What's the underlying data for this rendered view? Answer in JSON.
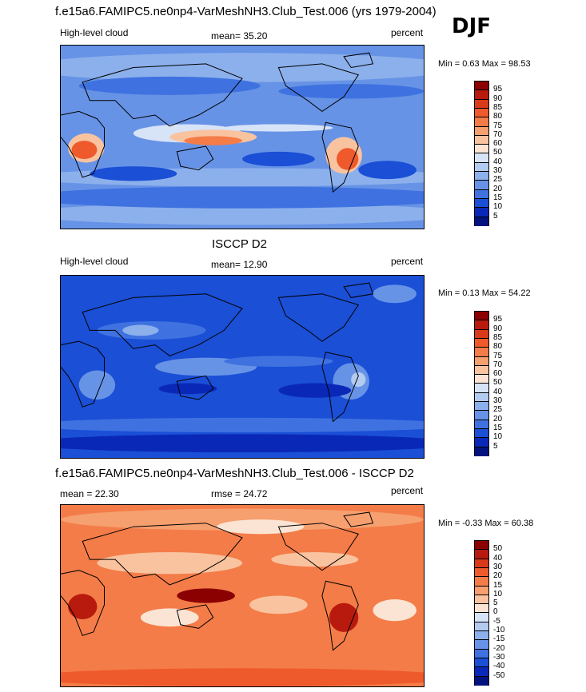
{
  "header": {
    "title": "f.e15a6.FAMIPC5.ne0np4-VarMeshNH3.Club_Test.006 (yrs 1979-2004)",
    "season": "DJF"
  },
  "panels": [
    {
      "id": "model",
      "variable": "High-level cloud",
      "mean_text": "mean=  35.20",
      "units": "percent",
      "minmax_text": "Min =   0.63 Max =  98.53",
      "labels": [
        "95",
        "90",
        "85",
        "80",
        "75",
        "70",
        "60",
        "50",
        "40",
        "30",
        "25",
        "20",
        "15",
        "10",
        "5"
      ]
    },
    {
      "id": "obs",
      "title": "ISCCP D2",
      "variable": "High-level cloud",
      "mean_text": "mean=  12.90",
      "units": "percent",
      "minmax_text": "Min =   0.13 Max =  54.22",
      "labels": [
        "95",
        "90",
        "85",
        "80",
        "75",
        "70",
        "60",
        "50",
        "40",
        "30",
        "25",
        "20",
        "15",
        "10",
        "5"
      ]
    },
    {
      "id": "diff",
      "title": "f.e15a6.FAMIPC5.ne0np4-VarMeshNH3.Club_Test.006 - ISCCP D2",
      "mean_text": "mean =  22.30",
      "rmse_text": "rmse =  24.72",
      "units": "percent",
      "minmax_text": "Min =  -0.33 Max =  60.38",
      "labels": [
        "50",
        "40",
        "30",
        "20",
        "15",
        "10",
        "5",
        "0",
        "-5",
        "-10",
        "-15",
        "-20",
        "-30",
        "-40",
        "-50"
      ]
    }
  ],
  "chart_data": [
    {
      "type": "heatmap",
      "title": "High-level cloud",
      "units": "percent",
      "mean": 35.2,
      "min": 0.63,
      "max": 98.53,
      "contour_levels": [
        5,
        10,
        15,
        20,
        25,
        30,
        40,
        50,
        60,
        70,
        75,
        80,
        85,
        90,
        95
      ]
    },
    {
      "type": "heatmap",
      "title": "ISCCP D2",
      "units": "percent",
      "mean": 12.9,
      "min": 0.13,
      "max": 54.22,
      "contour_levels": [
        5,
        10,
        15,
        20,
        25,
        30,
        40,
        50,
        60,
        70,
        75,
        80,
        85,
        90,
        95
      ]
    },
    {
      "type": "heatmap",
      "title": "f.e15a6.FAMIPC5.ne0np4-VarMeshNH3.Club_Test.006 - ISCCP D2",
      "units": "percent",
      "mean": 22.3,
      "rmse": 24.72,
      "min": -0.33,
      "max": 60.38,
      "contour_levels": [
        -50,
        -40,
        -30,
        -20,
        -15,
        -10,
        -5,
        0,
        5,
        10,
        15,
        20,
        30,
        40,
        50
      ]
    }
  ],
  "colors": {
    "scale": [
      "#8b0000",
      "#b81a0e",
      "#d93a1a",
      "#ee5a2c",
      "#f47c48",
      "#f69f6f",
      "#f9c3a0",
      "#fbe4d3",
      "#d7e3f7",
      "#b4cbf1",
      "#8cb0ec",
      "#6793e6",
      "#3f72e0",
      "#1a4fd6",
      "#0a28b8",
      "#021380"
    ]
  }
}
